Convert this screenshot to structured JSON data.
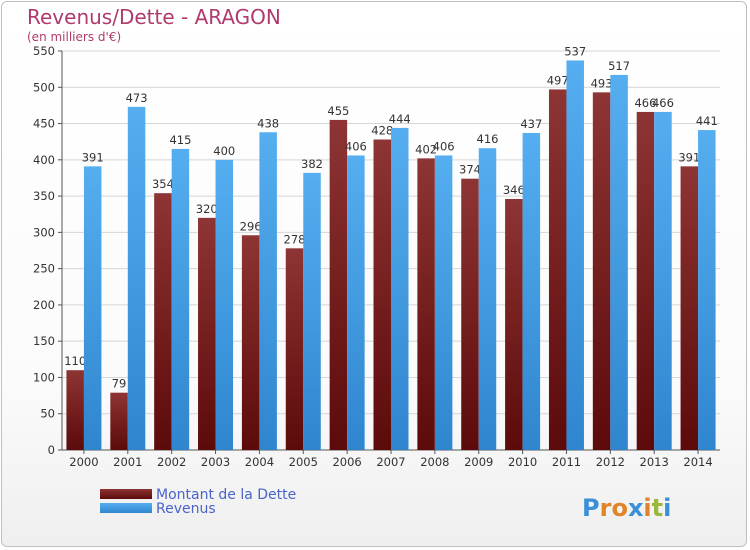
{
  "chart_data": {
    "type": "bar",
    "title": "Revenus/Dette - ARAGON",
    "subtitle": "(en milliers d'€)",
    "categories": [
      "2000",
      "2001",
      "2002",
      "2003",
      "2004",
      "2005",
      "2006",
      "2007",
      "2008",
      "2009",
      "2010",
      "2011",
      "2012",
      "2013",
      "2014"
    ],
    "series": [
      {
        "name": "Montant de la Dette",
        "color": "#7a1a1a",
        "values": [
          110,
          79,
          354,
          320,
          296,
          278,
          455,
          428,
          402,
          374,
          346,
          497,
          493,
          466,
          391
        ]
      },
      {
        "name": "Revenus",
        "color": "#4aa3e6",
        "values": [
          391,
          473,
          415,
          400,
          438,
          382,
          406,
          444,
          406,
          416,
          437,
          537,
          517,
          466,
          441
        ]
      }
    ],
    "ylim": [
      0,
      550
    ],
    "yticks": [
      0,
      50,
      100,
      150,
      200,
      250,
      300,
      350,
      400,
      450,
      500,
      550
    ],
    "grid": true,
    "legend": "bottom-left"
  },
  "logo": {
    "text": "Proxiti"
  }
}
